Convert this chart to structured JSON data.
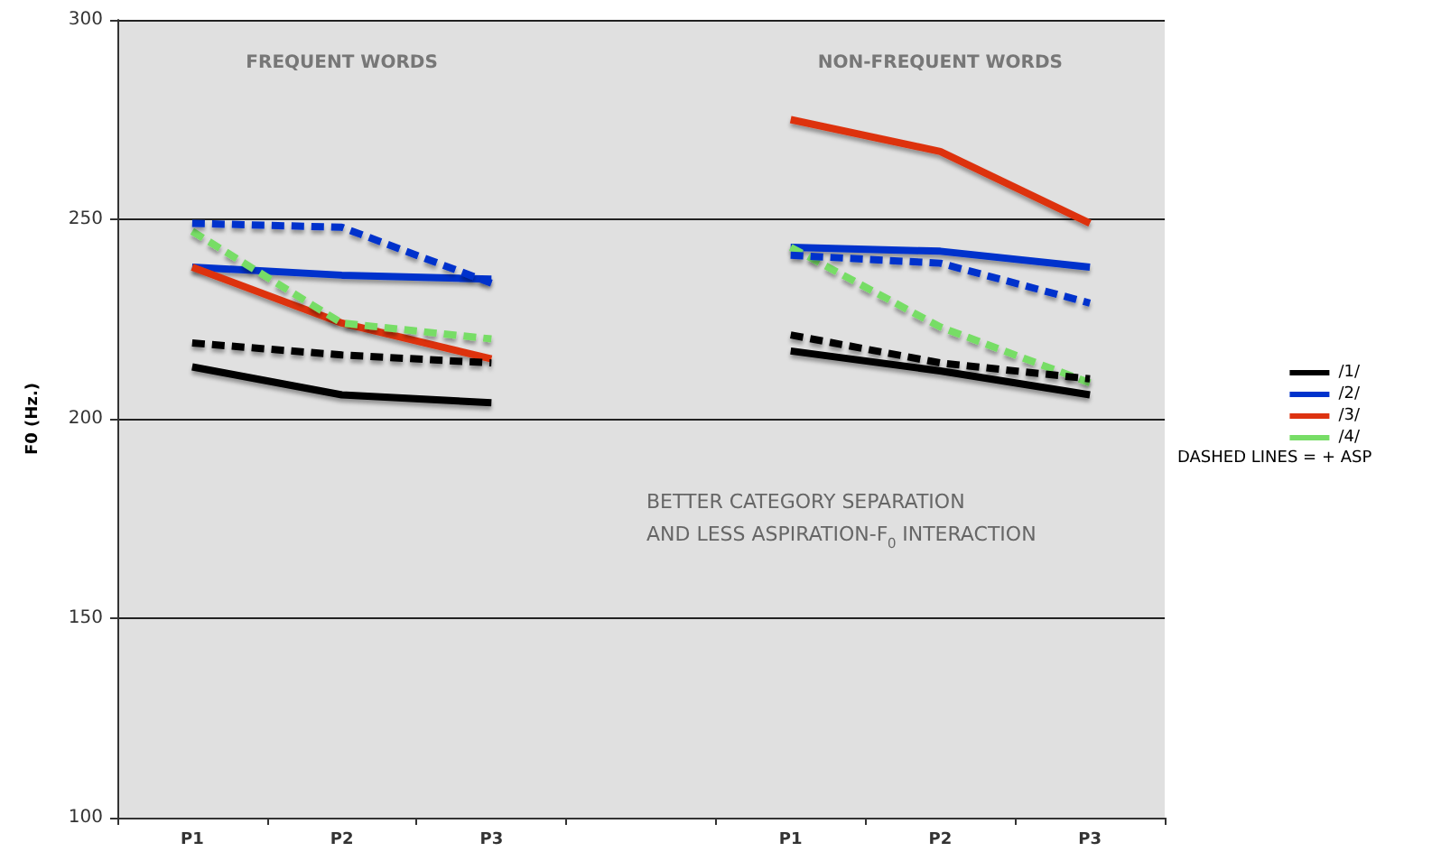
{
  "chart_data": {
    "type": "line",
    "ylabel": "F0 (Hz.)",
    "categories": [
      "P1",
      "P2",
      "P3",
      null,
      "P1",
      "P2",
      "P3"
    ],
    "ylim": [
      100,
      300
    ],
    "yticks": [
      100,
      150,
      200,
      250,
      300
    ],
    "grid": "y",
    "legend": "right",
    "marker": "none",
    "annotations": [
      "FREQUENT WORDS",
      "NON-FREQUENT WORDS",
      "BETTER CATEGORY SEPARATION\nAND LESS ASPIRATION-F$_{0}$ INTERACTION",
      "DASHED LINES = + ASP"
    ],
    "series": [
      {
        "name": "/1/",
        "color": "#000000",
        "values": [
          213,
          206,
          204,
          null,
          217,
          212,
          206
        ]
      },
      {
        "name": "/2/",
        "color": "#0033cc",
        "values": [
          238,
          236,
          235,
          null,
          243,
          242,
          238
        ]
      },
      {
        "name": "/3/",
        "color": "#dd3311",
        "values": [
          238,
          224,
          215,
          null,
          275,
          267,
          249
        ]
      },
      {
        "name": "/4/",
        "color": "#77dd66",
        "line_style": "dashed",
        "values": [
          247,
          224,
          220,
          null,
          243,
          223,
          209
        ]
      },
      {
        "color": "#000000",
        "line_style": "dashed",
        "values": [
          219,
          216,
          214,
          null,
          221,
          214,
          210
        ]
      },
      {
        "color": "#0033cc",
        "line_style": "dashed",
        "values": [
          249,
          248,
          234,
          null,
          241,
          239,
          229
        ]
      }
    ]
  }
}
